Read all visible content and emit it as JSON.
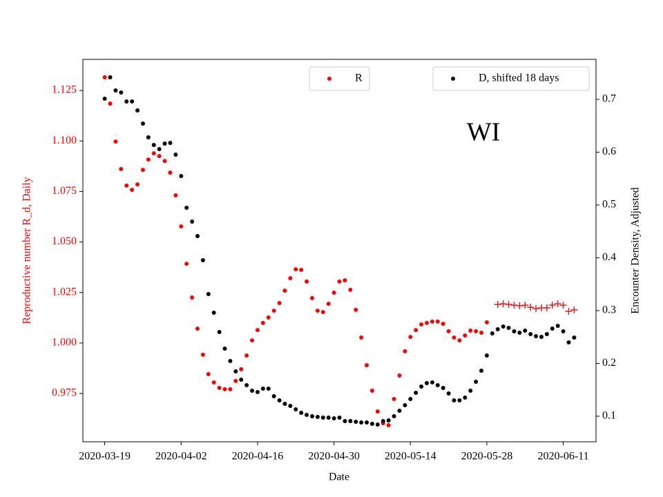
{
  "chart_data": {
    "type": "scatter",
    "annotation": "WI",
    "xlabel": "Date",
    "ylabel": "Reproductive number R_d, Daily",
    "y2label": "Encounter Density, Adjusted",
    "ylabel_color": "red",
    "x": [
      "2020-03-19",
      "2020-03-20",
      "2020-03-21",
      "2020-03-22",
      "2020-03-23",
      "2020-03-24",
      "2020-03-25",
      "2020-03-26",
      "2020-03-27",
      "2020-03-28",
      "2020-03-29",
      "2020-03-30",
      "2020-03-31",
      "2020-04-01",
      "2020-04-02",
      "2020-04-03",
      "2020-04-04",
      "2020-04-05",
      "2020-04-06",
      "2020-04-07",
      "2020-04-08",
      "2020-04-09",
      "2020-04-10",
      "2020-04-11",
      "2020-04-12",
      "2020-04-13",
      "2020-04-14",
      "2020-04-15",
      "2020-04-16",
      "2020-04-17",
      "2020-04-18",
      "2020-04-19",
      "2020-04-20",
      "2020-04-21",
      "2020-04-22",
      "2020-04-23",
      "2020-04-24",
      "2020-04-25",
      "2020-04-26",
      "2020-04-27",
      "2020-04-28",
      "2020-04-29",
      "2020-04-30",
      "2020-05-01",
      "2020-05-02",
      "2020-05-03",
      "2020-05-04",
      "2020-05-05",
      "2020-05-06",
      "2020-05-07",
      "2020-05-08",
      "2020-05-09",
      "2020-05-10",
      "2020-05-11",
      "2020-05-12",
      "2020-05-13",
      "2020-05-14",
      "2020-05-15",
      "2020-05-16",
      "2020-05-17",
      "2020-05-18",
      "2020-05-19",
      "2020-05-20",
      "2020-05-21",
      "2020-05-22",
      "2020-05-23",
      "2020-05-24",
      "2020-05-25",
      "2020-05-26",
      "2020-05-27",
      "2020-05-28",
      "2020-05-29",
      "2020-05-30",
      "2020-05-31",
      "2020-06-01",
      "2020-06-02",
      "2020-06-03",
      "2020-06-04",
      "2020-06-05",
      "2020-06-06",
      "2020-06-07",
      "2020-06-08",
      "2020-06-09",
      "2020-06-10",
      "2020-06-11",
      "2020-06-12",
      "2020-06-13"
    ],
    "xlim": [
      "2020-03-15",
      "2020-06-17"
    ],
    "xticks": [
      "2020-03-19",
      "2020-04-02",
      "2020-04-16",
      "2020-04-30",
      "2020-05-14",
      "2020-05-28",
      "2020-06-11"
    ],
    "ylim": [
      0.9511,
      1.1404
    ],
    "yticks": [
      0.975,
      {
        "value": 1.0,
        "label": "1.000"
      },
      1.025,
      {
        "value": 1.05,
        "label": "1.050"
      },
      1.075,
      {
        "value": 1.1,
        "label": "1.100"
      },
      1.125
    ],
    "ytick_color": "red",
    "y2lim": [
      0.0516,
      0.7758
    ],
    "y2ticks": [
      0.1,
      0.2,
      0.3,
      0.4,
      0.5,
      0.6,
      0.7
    ],
    "series": [
      {
        "name": "R",
        "color": "red",
        "marker": "o",
        "legend": "upper center",
        "values": [
          1.1315,
          1.1185,
          1.0997,
          1.0861,
          1.0779,
          1.0758,
          1.0785,
          1.0857,
          1.0908,
          1.0939,
          1.0925,
          1.0901,
          1.0843,
          1.0731,
          1.0577,
          1.0392,
          1.0225,
          1.0071,
          0.9942,
          0.9846,
          0.9805,
          0.9778,
          0.9771,
          0.9771,
          0.9812,
          0.987,
          0.9938,
          1.0013,
          1.0064,
          1.0099,
          1.0126,
          1.016,
          1.0198,
          1.0259,
          1.0321,
          1.0365,
          1.0362,
          1.0304,
          1.0222,
          1.016,
          1.0153,
          1.0194,
          1.0249,
          1.0304,
          1.031,
          1.0263,
          1.0164,
          1.0027,
          0.989,
          0.9764,
          0.9661,
          0.9603,
          0.9593,
          0.9723,
          0.9839,
          0.9959,
          1.003,
          1.0064,
          1.0092,
          1.0099,
          1.0106,
          1.0106,
          1.0095,
          1.0058,
          1.0027,
          1.0013,
          1.0037,
          1.0061,
          1.0058,
          1.0051,
          1.0102,
          null,
          null,
          null,
          null,
          null,
          null,
          null,
          null,
          null,
          null,
          null,
          null,
          null,
          null,
          null,
          null
        ]
      },
      {
        "color": "#e41a1c",
        "marker": "+",
        "values": [
          null,
          null,
          null,
          null,
          null,
          null,
          null,
          null,
          null,
          null,
          null,
          null,
          null,
          null,
          null,
          null,
          null,
          null,
          null,
          null,
          null,
          null,
          null,
          null,
          null,
          null,
          null,
          null,
          null,
          null,
          null,
          null,
          null,
          null,
          null,
          null,
          null,
          null,
          null,
          null,
          null,
          null,
          null,
          null,
          null,
          null,
          null,
          null,
          null,
          null,
          null,
          null,
          null,
          null,
          null,
          null,
          null,
          null,
          null,
          null,
          null,
          null,
          null,
          null,
          null,
          null,
          null,
          null,
          null,
          null,
          null,
          null,
          1.0191,
          1.0194,
          1.0191,
          1.0187,
          1.0184,
          1.0187,
          1.0177,
          1.017,
          1.0174,
          1.0174,
          1.0187,
          1.0194,
          1.0187,
          1.0157,
          1.0164
        ]
      },
      {
        "name": "D, shifted 18 days",
        "color": "black",
        "marker": "o",
        "axis": "y2",
        "legend": "upper right",
        "values": [
          0.7013,
          0.7418,
          0.717,
          0.7131,
          0.6961,
          0.6961,
          0.6791,
          0.6542,
          0.6281,
          0.6137,
          0.6059,
          0.6163,
          0.6176,
          0.5954,
          0.5549,
          0.4948,
          0.4686,
          0.4412,
          0.3954,
          0.3314,
          0.2961,
          0.2595,
          0.2281,
          0.2046,
          0.185,
          0.1693,
          0.1588,
          0.1484,
          0.1458,
          0.1523,
          0.1523,
          0.1379,
          0.1301,
          0.1235,
          0.1196,
          0.1131,
          0.1065,
          0.1026,
          0.1,
          0.0987,
          0.0974,
          0.0974,
          0.0961,
          0.0974,
          0.0908,
          0.0908,
          0.0895,
          0.0882,
          0.0882,
          0.0856,
          0.0843,
          0.0908,
          0.0922,
          0.1,
          0.1105,
          0.1209,
          0.1327,
          0.1444,
          0.1562,
          0.1627,
          0.1641,
          0.1588,
          0.1536,
          0.1431,
          0.1301,
          0.1301,
          0.1353,
          0.1484,
          0.1654,
          0.1863,
          0.215,
          0.2569,
          0.2647,
          0.2699,
          0.2673,
          0.2608,
          0.2582,
          0.2621,
          0.2556,
          0.2516,
          0.2503,
          0.2556,
          0.266,
          0.2712,
          0.2608,
          0.2399,
          0.249
        ]
      }
    ]
  }
}
